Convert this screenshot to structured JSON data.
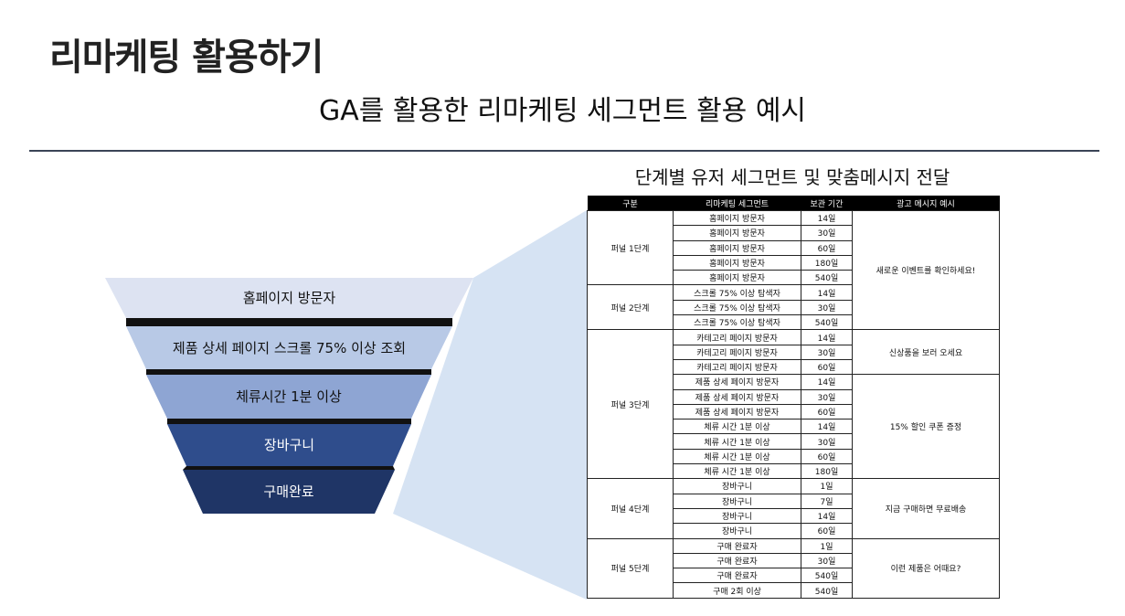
{
  "title": "리마케팅 활용하기",
  "subtitle": "GA를 활용한 리마케팅 세그먼트 활용 예시",
  "table_heading": "단계별 유저 세그먼트 및 맞춤메시지 전달",
  "colors": {
    "divider": "#3a4456",
    "cone": "#d6e3f3"
  },
  "funnel": [
    {
      "label": "홈페이지 방문자",
      "color": "#dde3f2",
      "text_color": "#111111"
    },
    {
      "label": "제품 상세 페이지 스크롤 75% 이상 조회",
      "color": "#b8c9e6",
      "text_color": "#111111"
    },
    {
      "label": "체류시간 1분 이상",
      "color": "#8ea5d3",
      "text_color": "#111111"
    },
    {
      "label": "장바구니",
      "color": "#2f4d8c",
      "text_color": "#ffffff"
    },
    {
      "label": "구매완료",
      "color": "#1f3566",
      "text_color": "#ffffff"
    }
  ],
  "table": {
    "headers": [
      "구분",
      "리마케팅 세그먼트",
      "보관 기간",
      "광고 메시지 예시"
    ],
    "stages": [
      {
        "name": "퍼널 1단계",
        "rows": [
          [
            "홈페이지 방문자",
            "14일"
          ],
          [
            "홈페이지 방문자",
            "30일"
          ],
          [
            "홈페이지 방문자",
            "60일"
          ],
          [
            "홈페이지 방문자",
            "180일"
          ],
          [
            "홈페이지 방문자",
            "540일"
          ]
        ]
      },
      {
        "name": "퍼널 2단계",
        "rows": [
          [
            "스크롤 75% 이상 탐색자",
            "14일"
          ],
          [
            "스크롤 75% 이상 탐색자",
            "30일"
          ],
          [
            "스크롤 75% 이상 탐색자",
            "540일"
          ]
        ]
      },
      {
        "name": "퍼널 3단계",
        "rows": [
          [
            "카테고리 페이지 방문자",
            "14일"
          ],
          [
            "카테고리 페이지 방문자",
            "30일"
          ],
          [
            "카테고리 페이지 방문자",
            "60일"
          ],
          [
            "제품 상세 페이지 방문자",
            "14일"
          ],
          [
            "제품 상세 페이지 방문자",
            "30일"
          ],
          [
            "제품 상세 페이지 방문자",
            "60일"
          ],
          [
            "체류 시간 1분 이상",
            "14일"
          ],
          [
            "체류 시간 1분 이상",
            "30일"
          ],
          [
            "체류 시간 1분 이상",
            "60일"
          ],
          [
            "체류 시간 1분 이상",
            "180일"
          ]
        ]
      },
      {
        "name": "퍼널 4단계",
        "rows": [
          [
            "장바구니",
            "1일"
          ],
          [
            "장바구니",
            "7일"
          ],
          [
            "장바구니",
            "14일"
          ],
          [
            "장바구니",
            "60일"
          ]
        ]
      },
      {
        "name": "퍼널 5단계",
        "rows": [
          [
            "구매 완료자",
            "1일"
          ],
          [
            "구매 완료자",
            "30일"
          ],
          [
            "구매 완료자",
            "540일"
          ],
          [
            "구매 2회 이상",
            "540일"
          ]
        ]
      }
    ],
    "messages": [
      {
        "text": "새로운 이벤트를 확인하세요!",
        "span": 8
      },
      {
        "text": "신상품을 보러 오세요",
        "span": 3
      },
      {
        "text": "15% 할인 쿠폰 증정",
        "span": 7
      },
      {
        "text": "지금 구매하면 무료배송",
        "span": 4
      },
      {
        "text": "이런 제품은 어때요?",
        "span": 4
      }
    ]
  }
}
